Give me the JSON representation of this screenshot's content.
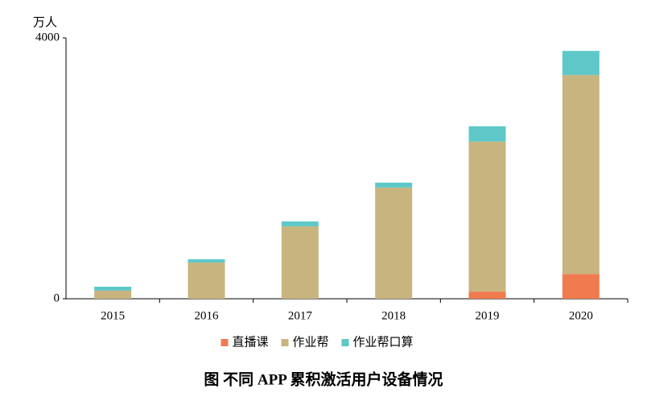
{
  "chart_data": {
    "type": "stacked_bar",
    "title": "图 不同 APP 累积激活用户设备情况",
    "y_label": "万人",
    "categories": [
      "2015",
      "2016",
      "2017",
      "2018",
      "2019",
      "2020"
    ],
    "series": [
      {
        "name": "直播课",
        "color": "#f07b4f",
        "values": [
          0,
          0,
          0,
          0,
          110,
          380
        ]
      },
      {
        "name": "作业帮",
        "color": "#c8b47e",
        "values": [
          125,
          555,
          1110,
          1705,
          2300,
          3050
        ]
      },
      {
        "name": "作业帮口算",
        "color": "#5ec8c8",
        "values": [
          60,
          50,
          75,
          75,
          235,
          370
        ]
      }
    ],
    "ylim": [
      0,
      4000
    ],
    "yticks": [
      0,
      4000
    ],
    "legend": "bottom"
  }
}
